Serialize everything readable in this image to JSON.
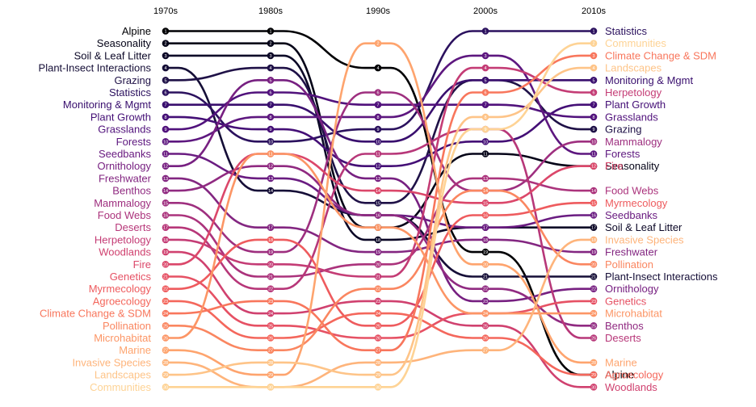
{
  "chart_data": {
    "type": "bump",
    "title": "",
    "xlabel": "",
    "ylabel": "",
    "x": [
      "1970s",
      "1980s",
      "1990s",
      "2000s",
      "2010s"
    ],
    "series": [
      {
        "name": "Alpine",
        "ranks": [
          1,
          1,
          4,
          19,
          29
        ],
        "color": "#000004"
      },
      {
        "name": "Seasonality",
        "ranks": [
          2,
          2,
          17,
          11,
          12
        ],
        "color": "#050418"
      },
      {
        "name": "Soil & Leaf Litter",
        "ranks": [
          3,
          3,
          18,
          17,
          17
        ],
        "color": "#0c0827"
      },
      {
        "name": "Plant-Insect Interactions",
        "ranks": [
          4,
          14,
          16,
          21,
          21
        ],
        "color": "#150e37"
      },
      {
        "name": "Grazing",
        "ranks": [
          5,
          4,
          15,
          5,
          9
        ],
        "color": "#1f1147"
      },
      {
        "name": "Statistics",
        "ranks": [
          6,
          10,
          9,
          1,
          1
        ],
        "color": "#2b115e"
      },
      {
        "name": "Monitoring & Mgmt",
        "ranks": [
          7,
          7,
          10,
          5,
          5
        ],
        "color": "#390f6e"
      },
      {
        "name": "Plant Growth",
        "ranks": [
          8,
          9,
          12,
          10,
          7
        ],
        "color": "#440f76"
      },
      {
        "name": "Grasslands",
        "ranks": [
          9,
          6,
          7,
          7,
          8
        ],
        "color": "#51127c"
      },
      {
        "name": "Forests",
        "ranks": [
          10,
          8,
          8,
          3,
          11
        ],
        "color": "#5d177f"
      },
      {
        "name": "Seedbanks",
        "ranks": [
          11,
          13,
          16,
          17,
          16
        ],
        "color": "#6a1c81"
      },
      {
        "name": "Ornithology",
        "ranks": [
          12,
          5,
          13,
          23,
          22
        ],
        "color": "#772081"
      },
      {
        "name": "Freshwater",
        "ranks": [
          13,
          17,
          19,
          18,
          19
        ],
        "color": "#832681"
      },
      {
        "name": "Benthos",
        "ranks": [
          14,
          12,
          16,
          22,
          25
        ],
        "color": "#902a81"
      },
      {
        "name": "Mammalogy",
        "ranks": [
          15,
          19,
          6,
          14,
          10
        ],
        "color": "#9e2f7f"
      },
      {
        "name": "Food Webs",
        "ranks": [
          16,
          21,
          20,
          13,
          14
        ],
        "color": "#ab337c"
      },
      {
        "name": "Deserts",
        "ranks": [
          17,
          22,
          11,
          9,
          26
        ],
        "color": "#b73779"
      },
      {
        "name": "Herpetology",
        "ranks": [
          18,
          20,
          21,
          4,
          6
        ],
        "color": "#c43c75"
      },
      {
        "name": "Woodlands",
        "ranks": [
          19,
          24,
          23,
          25,
          30
        ],
        "color": "#d0416f"
      },
      {
        "name": "Fire",
        "ranks": [
          20,
          11,
          14,
          15,
          12
        ],
        "color": "#db476a"
      },
      {
        "name": "Genetics",
        "ranks": [
          21,
          25,
          26,
          24,
          23
        ],
        "color": "#e65164"
      },
      {
        "name": "Myrmecology",
        "ranks": [
          22,
          18,
          25,
          16,
          15
        ],
        "color": "#ee5b5e"
      },
      {
        "name": "Agroecology",
        "ranks": [
          23,
          26,
          24,
          26,
          29
        ],
        "color": "#f4675c"
      },
      {
        "name": "Climate Change & SDM",
        "ranks": [
          24,
          23,
          27,
          6,
          3
        ],
        "color": "#f8765c"
      },
      {
        "name": "Pollination",
        "ranks": [
          25,
          27,
          22,
          14,
          20
        ],
        "color": "#fa8660"
      },
      {
        "name": "Microhabitat",
        "ranks": [
          26,
          11,
          17,
          24,
          24
        ],
        "color": "#fc9565"
      },
      {
        "name": "Marine",
        "ranks": [
          27,
          29,
          2,
          20,
          28
        ],
        "color": "#fea46e"
      },
      {
        "name": "Invasive Species",
        "ranks": [
          28,
          30,
          28,
          27,
          18
        ],
        "color": "#feb47b"
      },
      {
        "name": "Landscapes",
        "ranks": [
          29,
          28,
          29,
          8,
          4
        ],
        "color": "#fec488"
      },
      {
        "name": "Communities",
        "ranks": [
          30,
          30,
          30,
          9,
          2
        ],
        "color": "#fed395"
      }
    ]
  }
}
